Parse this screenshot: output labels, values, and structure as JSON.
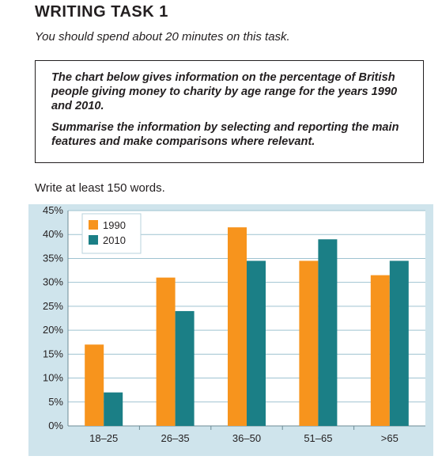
{
  "header": {
    "title": "WRITING TASK 1",
    "time_note": "You should spend about 20 minutes on this task."
  },
  "prompt": {
    "line1": "The chart below gives information on the percentage of British people giving money to charity by age range for the years 1990 and 2010.",
    "line2": "Summarise the information by selecting and reporting the main features and make comparisons where relevant."
  },
  "word_note": "Write at least 150 words.",
  "colors": {
    "series_1990": "#f7941d",
    "series_2010": "#1b7f86",
    "panel_bg": "#cfe4ec",
    "plot_bg": "#ffffff"
  },
  "chart_data": {
    "type": "bar",
    "categories": [
      "18–25",
      "26–35",
      "36–50",
      "51–65",
      ">65"
    ],
    "series": [
      {
        "name": "1990",
        "values": [
          17,
          31,
          41.5,
          34.5,
          31.5
        ]
      },
      {
        "name": "2010",
        "values": [
          7,
          24,
          34.5,
          39,
          34.5
        ]
      }
    ],
    "yticks": [
      "0%",
      "5%",
      "10%",
      "15%",
      "20%",
      "25%",
      "30%",
      "35%",
      "40%",
      "45%"
    ],
    "ylim": [
      0,
      45
    ],
    "grid": true,
    "legend": "top-left",
    "title": "",
    "xlabel": "",
    "ylabel": ""
  }
}
